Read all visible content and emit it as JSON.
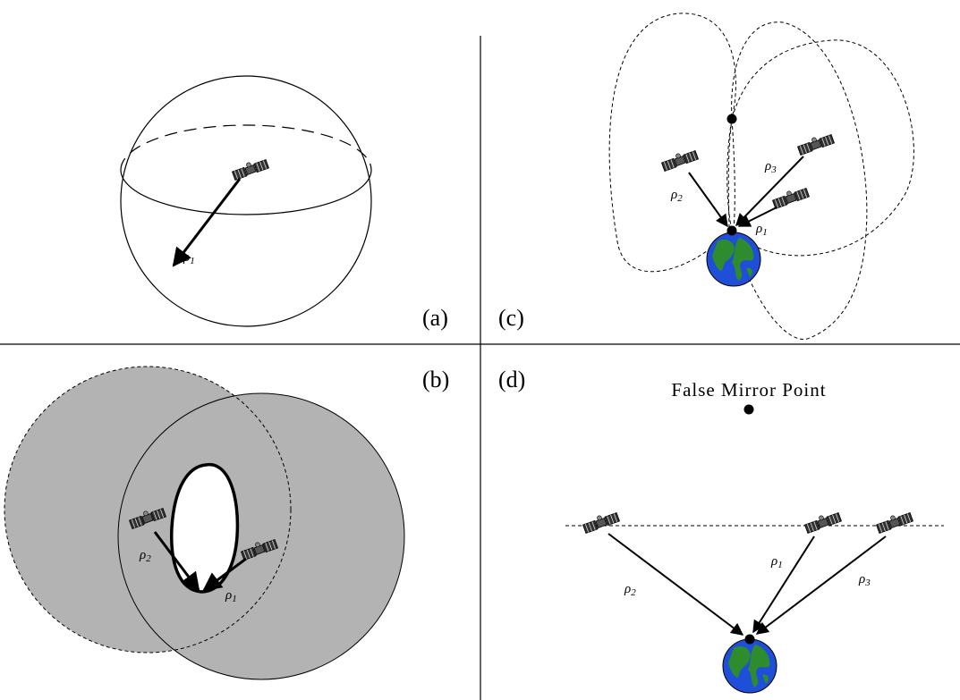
{
  "panels": {
    "a": {
      "label": "(a)",
      "rho": [
        {
          "symbol": "ρ",
          "sub": "1"
        }
      ]
    },
    "b": {
      "label": "(b)",
      "rho": [
        {
          "symbol": "ρ",
          "sub": "2"
        },
        {
          "symbol": "ρ",
          "sub": "1"
        }
      ]
    },
    "c": {
      "label": "(c)",
      "rho": [
        {
          "symbol": "ρ",
          "sub": "2"
        },
        {
          "symbol": "ρ",
          "sub": "3"
        },
        {
          "symbol": "ρ",
          "sub": "1"
        }
      ]
    },
    "d": {
      "label": "(d)",
      "mirror_point": "False Mirror Point",
      "rho": [
        {
          "symbol": "ρ",
          "sub": "2"
        },
        {
          "symbol": "ρ",
          "sub": "1"
        },
        {
          "symbol": "ρ",
          "sub": "3"
        }
      ]
    }
  }
}
